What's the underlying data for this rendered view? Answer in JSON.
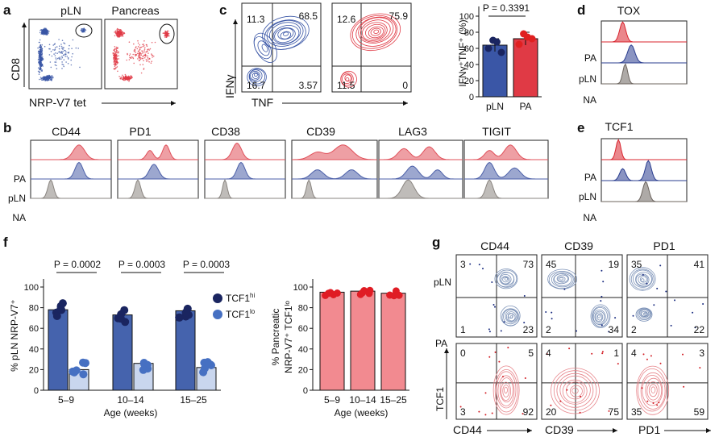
{
  "colors": {
    "pln": "#3a56a6",
    "pancreas": "#e03a45",
    "naive": "#8a8580",
    "tcf_hi": "#1a2560",
    "tcf_lo": "#4670c2"
  },
  "panel_a": {
    "label": "a",
    "titles": [
      "pLN",
      "Pancreas"
    ],
    "ylabel": "CD8",
    "xlabel": "NRP-V7 tet"
  },
  "panel_c": {
    "label": "c",
    "ylabel": "IFNγ",
    "xlabel": "TNF",
    "plots": [
      {
        "q_tl": "11.3",
        "q_tr": "68.5",
        "q_bl": "16.7",
        "q_br": "3.57"
      },
      {
        "q_tl": "12.6",
        "q_tr": "75.9",
        "q_bl": "11.5",
        "q_br": "0"
      }
    ],
    "bar_ylabel": "IFNγ⁺TNF⁺ (%)",
    "pvalue": "P = 0.3391",
    "yticks": [
      "0",
      "20",
      "40",
      "60",
      "80",
      "100"
    ],
    "categories": [
      "pLN",
      "PA"
    ]
  },
  "panel_d": {
    "label": "d",
    "title": "TOX",
    "rows": [
      "PA",
      "pLN",
      "NA"
    ]
  },
  "panel_e": {
    "label": "e",
    "title": "TCF1",
    "rows": [
      "PA",
      "pLN",
      "NA"
    ]
  },
  "panel_b": {
    "label": "b",
    "markers": [
      "CD44",
      "PD1",
      "CD38",
      "CD39",
      "LAG3",
      "TIGIT"
    ],
    "rows": [
      "PA",
      "pLN",
      "NA"
    ]
  },
  "panel_f": {
    "label": "f",
    "ylabel": "% pLN NRP-V7⁺",
    "ylabel2a": "% Pancreatic",
    "ylabel2b": "NRP-V7⁺ TCF1ˡᵒ",
    "xlabel": "Age (weeks)",
    "legend": [
      "TCF1hi",
      "TCF1lo"
    ],
    "legend_sup": [
      "hi",
      "lo"
    ],
    "legend_base": "TCF1",
    "pvalues": [
      "P = 0.0002",
      "P = 0.0003",
      "P = 0.0003"
    ],
    "yticks": [
      "0",
      "20",
      "40",
      "60",
      "80",
      "100"
    ],
    "groups": [
      "5–9",
      "10–14",
      "15–25"
    ]
  },
  "panel_g": {
    "label": "g",
    "titles": [
      "CD44",
      "CD39",
      "PD1"
    ],
    "row_labels": [
      "pLN",
      "PA"
    ],
    "ylabel": "TCF1",
    "xlabels": [
      "CD44",
      "CD39",
      "PD1"
    ],
    "quads_top": [
      {
        "tl": "3",
        "tr": "73",
        "bl": "1",
        "br": "23"
      },
      {
        "tl": "45",
        "tr": "19",
        "bl": "2",
        "br": "34"
      },
      {
        "tl": "35",
        "tr": "41",
        "bl": "2",
        "br": "22"
      }
    ],
    "quads_bottom": [
      {
        "tl": "0",
        "tr": "5",
        "bl": "3",
        "br": "92"
      },
      {
        "tl": "4",
        "tr": "1",
        "bl": "20",
        "br": "75"
      },
      {
        "tl": "4",
        "tr": "3",
        "bl": "35",
        "br": "59"
      }
    ]
  },
  "chart_data": [
    {
      "type": "bar",
      "title": "",
      "categories": [
        "pLN",
        "PA"
      ],
      "values": [
        64,
        72
      ],
      "ylabel": "IFNγ⁺TNF⁺ (%)",
      "ylim": [
        0,
        100
      ]
    },
    {
      "type": "bar",
      "categories": [
        "5–9",
        "10–14",
        "15–25"
      ],
      "series": [
        {
          "name": "TCF1hi",
          "values": [
            78,
            73,
            77
          ]
        },
        {
          "name": "TCF1lo",
          "values": [
            20,
            26,
            22
          ]
        }
      ],
      "xlabel": "Age (weeks)",
      "ylabel": "% pLN NRP-V7⁺",
      "ylim": [
        0,
        100
      ]
    },
    {
      "type": "bar",
      "categories": [
        "5–9",
        "10–14",
        "15–25"
      ],
      "values": [
        95,
        96,
        94
      ],
      "xlabel": "Age (weeks)",
      "ylabel": "% Pancreatic NRP-V7⁺ TCF1ˡᵒ",
      "ylim": [
        0,
        100
      ]
    }
  ]
}
